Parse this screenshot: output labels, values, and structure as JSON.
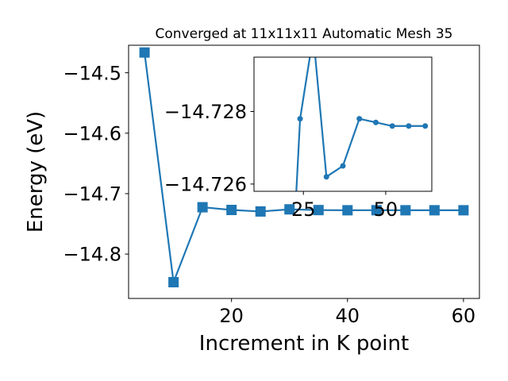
{
  "chart_data": [
    {
      "type": "line",
      "title": "Converged at 11x11x11 Automatic Mesh 35",
      "xlabel": "Increment in K point",
      "ylabel": "Energy (eV)",
      "xlim": [
        2.25,
        62.75
      ],
      "ylim": [
        -14.8734,
        -14.4545
      ],
      "xticks": [
        20,
        40,
        60
      ],
      "xtick_labels": [
        "20",
        "40",
        "60"
      ],
      "yticks": [
        -14.8,
        -14.7,
        -14.6,
        -14.5
      ],
      "ytick_labels": [
        "−14.8",
        "−14.7",
        "−14.6",
        "−14.5"
      ],
      "marker": "square",
      "color": "#1f77b4",
      "grid": false,
      "series": [
        {
          "x": [
            5,
            10,
            15,
            20,
            25,
            30,
            35,
            40,
            45,
            50,
            55,
            60
          ],
          "y": [
            -14.4665,
            -14.8465,
            -14.7225,
            -14.727,
            -14.7295,
            -14.726,
            -14.7272,
            -14.7275,
            -14.7274,
            -14.7275,
            -14.7275,
            -14.7275
          ]
        }
      ]
    },
    {
      "type": "line",
      "inset": true,
      "xlim": [
        10.0,
        64.0
      ],
      "ylim": [
        -14.7258,
        -14.7295
      ],
      "xticks": [
        25,
        50
      ],
      "xtick_labels": [
        "25",
        "50"
      ],
      "yticks": [
        -14.728,
        -14.726
      ],
      "ytick_labels": [
        "−14.728",
        "−14.726"
      ],
      "marker": "circle",
      "color": "#1f77b4",
      "grid": false,
      "series": [
        {
          "x": [
            22,
            24,
            28,
            32,
            37,
            42,
            47,
            52,
            57,
            62
          ],
          "y": [
            -14.7243,
            -14.7278,
            -14.7301,
            -14.7262,
            -14.7265,
            -14.7278,
            -14.7277,
            -14.7276,
            -14.7276,
            -14.7276
          ]
        }
      ]
    }
  ]
}
